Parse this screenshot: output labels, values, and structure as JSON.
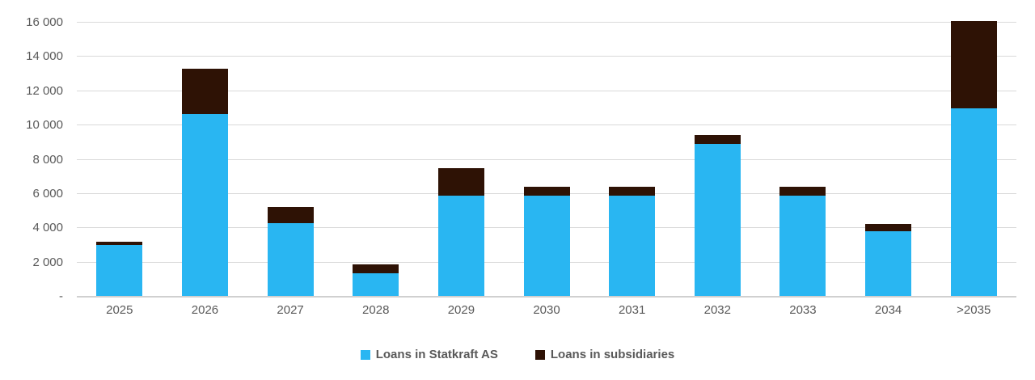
{
  "chart_data": {
    "type": "bar",
    "stacked": true,
    "title": "",
    "xlabel": "",
    "ylabel": "",
    "categories": [
      "2025",
      "2026",
      "2027",
      "2028",
      "2029",
      "2030",
      "2031",
      "2032",
      "2033",
      "2034",
      ">2035"
    ],
    "series": [
      {
        "name": "Loans in Statkraft AS",
        "color": "#29b6f2",
        "values": [
          3000,
          10650,
          4300,
          1350,
          5900,
          5900,
          5900,
          8900,
          5900,
          3800,
          11000
        ]
      },
      {
        "name": "Loans in subsidiaries",
        "color": "#2e1205",
        "values": [
          200,
          2650,
          950,
          550,
          1600,
          500,
          500,
          550,
          500,
          450,
          5100
        ]
      }
    ],
    "totals": [
      3200,
      13300,
      5250,
      1900,
      7500,
      6400,
      6400,
      9450,
      6400,
      4250,
      16100
    ],
    "y_axis": {
      "min": 0,
      "max": 16000,
      "tick_step": 2000,
      "tick_labels": [
        "-",
        "2 000",
        "4 000",
        "6 000",
        "8 000",
        "10 000",
        "12 000",
        "14 000",
        "16 000"
      ]
    },
    "grid": true,
    "legend_position": "bottom",
    "colors": {
      "gridline": "#d9d9d9",
      "axis_text": "#595959",
      "background": "#ffffff"
    }
  }
}
